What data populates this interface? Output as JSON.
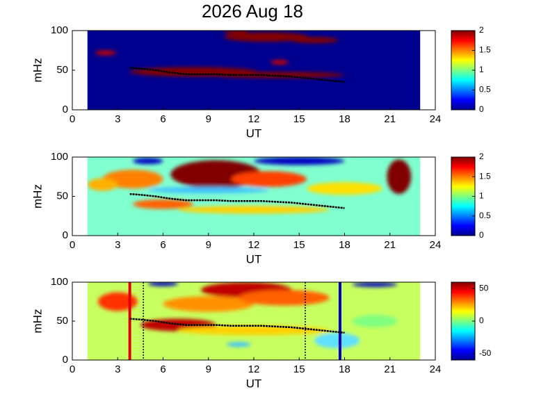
{
  "title": "2026 Aug 18",
  "chart_data": [
    {
      "type": "spectrogram",
      "ylabel": "mHz",
      "xlabel": "UT",
      "xlim": [
        0,
        24
      ],
      "xticks": [
        0,
        3,
        6,
        9,
        12,
        15,
        18,
        21,
        24
      ],
      "ylim": [
        0,
        100
      ],
      "yticks": [
        0,
        50,
        100
      ],
      "data_extent": [
        1,
        23
      ],
      "background": "#00008f",
      "colorbar": {
        "lim": [
          0,
          2
        ],
        "ticks": [
          0,
          0.5,
          1,
          1.5,
          2
        ]
      },
      "track": {
        "x": [
          3.8,
          4.5,
          5.5,
          6.5,
          7.5,
          8.5,
          9.5,
          10.5,
          11.5,
          12.5,
          13.5,
          14.5,
          15.5,
          16.5,
          17.5,
          18
        ],
        "y": [
          53,
          52,
          50,
          47,
          45,
          45,
          45,
          44,
          44,
          44,
          43,
          42,
          40,
          38,
          36,
          35
        ]
      }
    },
    {
      "type": "spectrogram",
      "ylabel": "mHz",
      "xlabel": "UT",
      "xlim": [
        0,
        24
      ],
      "xticks": [
        0,
        3,
        6,
        9,
        12,
        15,
        18,
        21,
        24
      ],
      "ylim": [
        0,
        100
      ],
      "yticks": [
        0,
        50,
        100
      ],
      "data_extent": [
        1,
        23
      ],
      "background": "#80ffd0",
      "colorbar": {
        "lim": [
          0,
          2
        ],
        "ticks": [
          0,
          0.5,
          1,
          1.5,
          2
        ]
      },
      "track": {
        "x": [
          3.8,
          4.5,
          5.5,
          6.5,
          7.5,
          8.5,
          9.5,
          10.5,
          11.5,
          12.5,
          13.5,
          14.5,
          15.5,
          16.5,
          17.5,
          18
        ],
        "y": [
          53,
          52,
          50,
          47,
          45,
          45,
          45,
          44,
          44,
          44,
          43,
          42,
          40,
          38,
          36,
          35
        ]
      }
    },
    {
      "type": "spectrogram",
      "ylabel": "mHz",
      "xlabel": "UT",
      "xlim": [
        0,
        24
      ],
      "xticks": [
        0,
        3,
        6,
        9,
        12,
        15,
        18,
        21,
        24
      ],
      "ylim": [
        0,
        100
      ],
      "yticks": [
        0,
        50,
        100
      ],
      "data_extent": [
        1,
        23
      ],
      "background": "#c8ff60",
      "colorbar": {
        "lim": [
          -60,
          60
        ],
        "ticks": [
          -50,
          0,
          50
        ]
      },
      "track": {
        "x": [
          3.8,
          4.5,
          5.5,
          6.5,
          7.5,
          8.5,
          9.5,
          10.5,
          11.5,
          12.5,
          13.5,
          14.5,
          15.5,
          16.5,
          17.5,
          18
        ],
        "y": [
          53,
          52,
          50,
          47,
          45,
          45,
          45,
          44,
          44,
          44,
          43,
          42,
          40,
          38,
          36,
          35
        ]
      },
      "vlines": [
        {
          "x": 3.8,
          "color": "#e00000",
          "dashed": false
        },
        {
          "x": 4.7,
          "color": "#000000",
          "dashed": true
        },
        {
          "x": 15.4,
          "color": "#000000",
          "dashed": true
        },
        {
          "x": 17.7,
          "color": "#0000c0",
          "dashed": false
        }
      ]
    }
  ]
}
